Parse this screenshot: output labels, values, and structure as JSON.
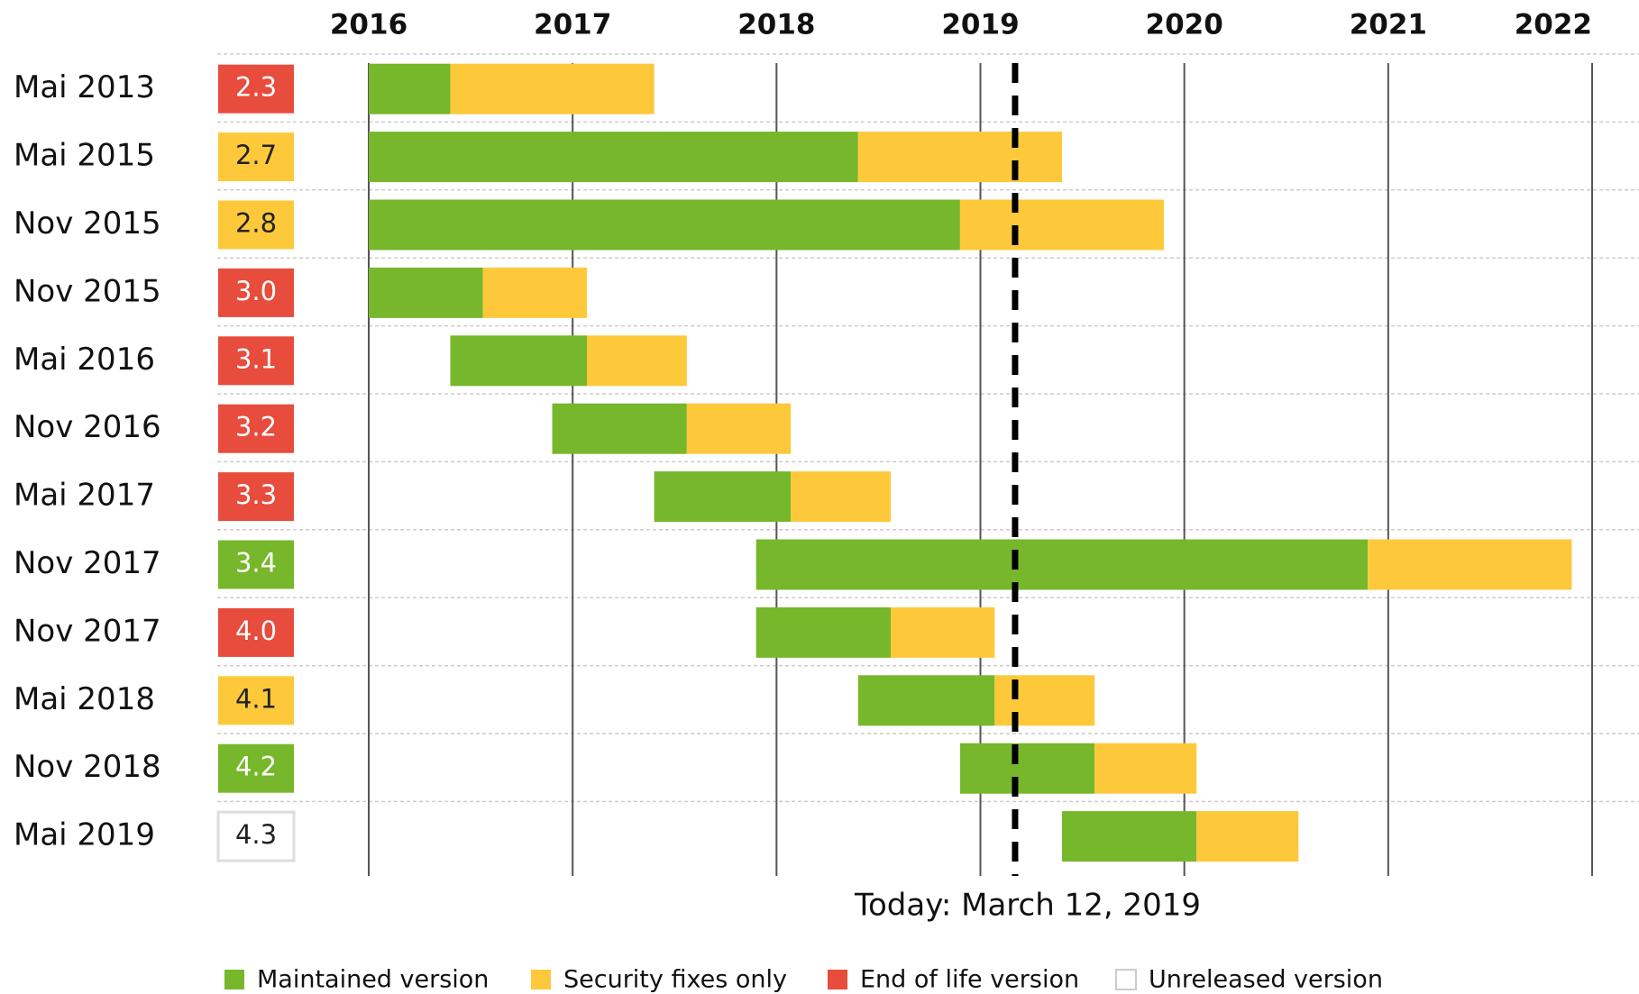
{
  "chart_data": {
    "type": "gantt",
    "xlim": [
      2016,
      2022
    ],
    "xticks": [
      2016,
      2017,
      2018,
      2019,
      2020,
      2021,
      2022
    ],
    "series": [
      {
        "name": "Maintained version",
        "color": "#77b72b"
      },
      {
        "name": "Security fixes only",
        "color": "#fdc93a"
      },
      {
        "name": "End of life version",
        "color": "#e74c3c"
      },
      {
        "name": "Unreleased version",
        "color": "#ffffff"
      }
    ],
    "rows": [
      {
        "release": "Mai 2013",
        "version": "2.3",
        "badge_color": "#e74c3c",
        "start": 2016.0,
        "maintained_end": 2016.4,
        "security_end": 2017.4
      },
      {
        "release": "Mai 2015",
        "version": "2.7",
        "badge_color": "#fdc93a",
        "start": 2016.0,
        "maintained_end": 2018.4,
        "security_end": 2019.4
      },
      {
        "release": "Nov 2015",
        "version": "2.8",
        "badge_color": "#fdc93a",
        "start": 2016.0,
        "maintained_end": 2018.9,
        "security_end": 2019.9
      },
      {
        "release": "Nov 2015",
        "version": "3.0",
        "badge_color": "#e74c3c",
        "start": 2016.0,
        "maintained_end": 2016.56,
        "security_end": 2017.07
      },
      {
        "release": "Mai 2016",
        "version": "3.1",
        "badge_color": "#e74c3c",
        "start": 2016.4,
        "maintained_end": 2017.07,
        "security_end": 2017.56
      },
      {
        "release": "Nov 2016",
        "version": "3.2",
        "badge_color": "#e74c3c",
        "start": 2016.9,
        "maintained_end": 2017.56,
        "security_end": 2018.07
      },
      {
        "release": "Mai 2017",
        "version": "3.3",
        "badge_color": "#e74c3c",
        "start": 2017.4,
        "maintained_end": 2018.07,
        "security_end": 2018.56
      },
      {
        "release": "Nov 2017",
        "version": "3.4",
        "badge_color": "#77b72b",
        "start": 2017.9,
        "maintained_end": 2020.9,
        "security_end": 2021.9
      },
      {
        "release": "Nov 2017",
        "version": "4.0",
        "badge_color": "#e74c3c",
        "start": 2017.9,
        "maintained_end": 2018.56,
        "security_end": 2019.07
      },
      {
        "release": "Mai 2018",
        "version": "4.1",
        "badge_color": "#fdc93a",
        "start": 2018.4,
        "maintained_end": 2019.07,
        "security_end": 2019.56
      },
      {
        "release": "Nov 2018",
        "version": "4.2",
        "badge_color": "#77b72b",
        "start": 2018.9,
        "maintained_end": 2019.56,
        "security_end": 2020.06
      },
      {
        "release": "Mai 2019",
        "version": "4.3",
        "badge_color": "#ffffff",
        "start": 2019.4,
        "maintained_end": 2020.06,
        "security_end": 2020.56
      }
    ],
    "today": {
      "value": 2019.17,
      "label": "Today: March 12, 2019"
    }
  }
}
